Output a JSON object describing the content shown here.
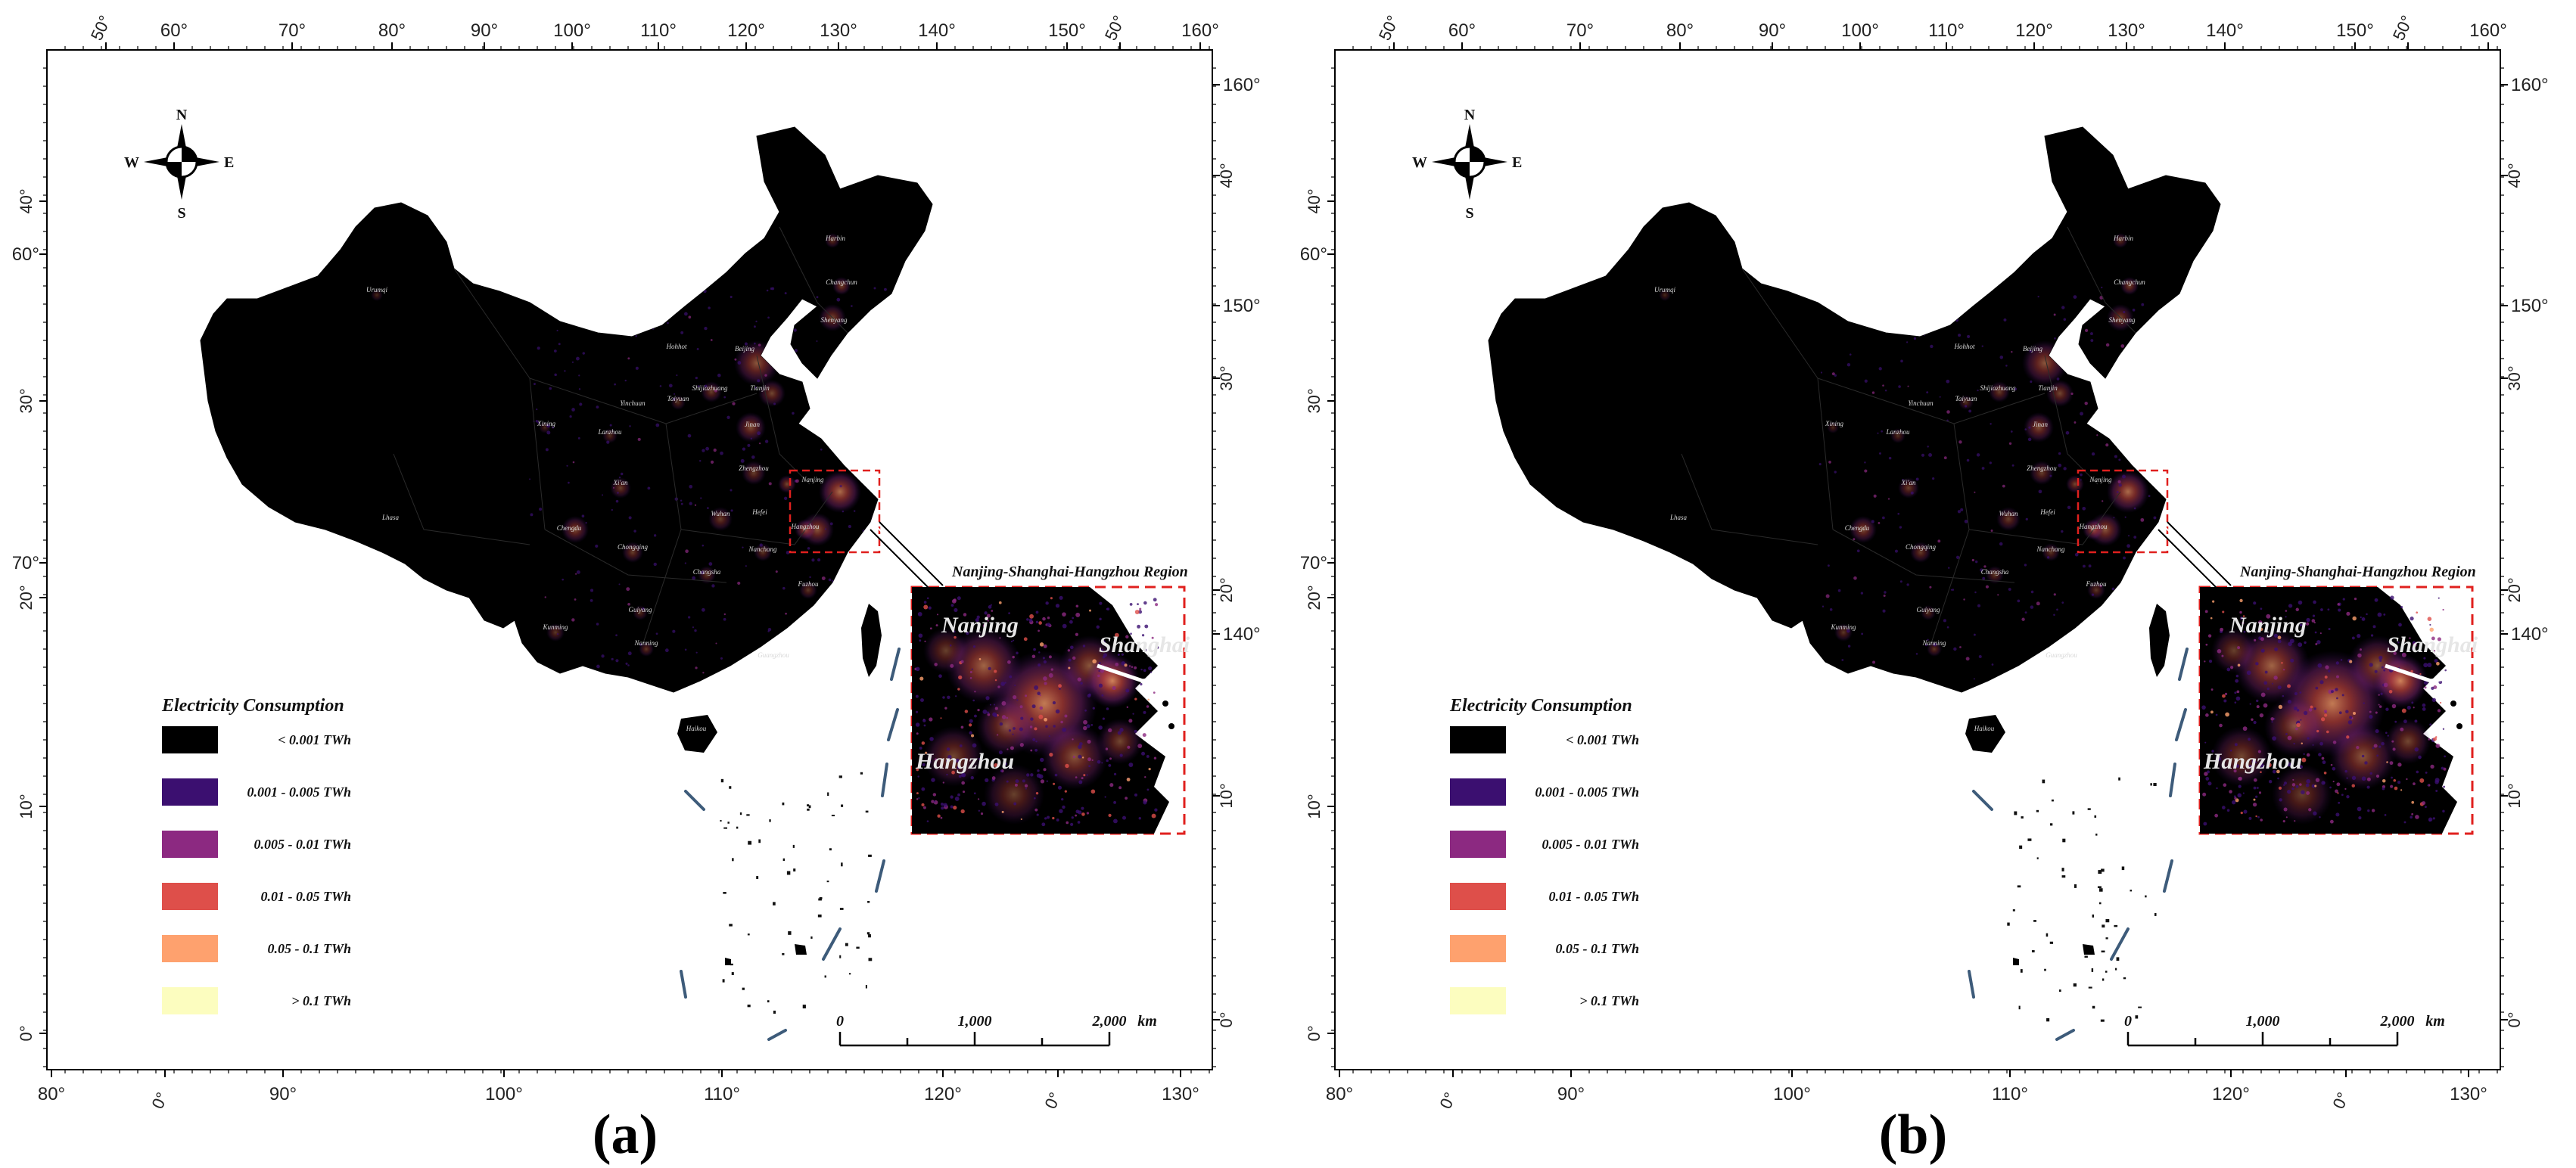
{
  "panels": [
    {
      "letter": "(a)",
      "legend": {
        "title": "Electricity Consumption",
        "items": [
          {
            "label": "< 0.001 TWh",
            "color": "#000000"
          },
          {
            "label": "0.001 - 0.005 TWh",
            "color": "#3b0f70"
          },
          {
            "label": "0.005 - 0.01 TWh",
            "color": "#8c2981"
          },
          {
            "label": "0.01 - 0.05 TWh",
            "color": "#de4f4a"
          },
          {
            "label": "0.05 - 0.1 TWh",
            "color": "#fea16e"
          },
          {
            "label": "> 0.1 TWh",
            "color": "#fcfdbf"
          }
        ]
      },
      "compass": {
        "n": "N",
        "s": "S",
        "e": "E",
        "w": "W"
      },
      "inset": {
        "title": "Nanjing-Shanghai-Hangzhou Region",
        "cities": [
          "Nanjing",
          "Shanghai",
          "Hangzhou"
        ]
      },
      "scalebar": {
        "labels": [
          "0",
          "1,000",
          "2,000"
        ],
        "unit": "km"
      }
    },
    {
      "letter": "(b)",
      "legend": {
        "title": "Electricity Consumption",
        "items": [
          {
            "label": "< 0.001 TWh",
            "color": "#000000"
          },
          {
            "label": "0.001 - 0.005 TWh",
            "color": "#3b0f70"
          },
          {
            "label": "0.005 - 0.01 TWh",
            "color": "#8c2981"
          },
          {
            "label": "0.01 - 0.05 TWh",
            "color": "#de4f4a"
          },
          {
            "label": "0.05 - 0.1 TWh",
            "color": "#fea16e"
          },
          {
            "label": "> 0.1 TWh",
            "color": "#fcfdbf"
          }
        ]
      },
      "compass": {
        "n": "N",
        "s": "S",
        "e": "E",
        "w": "W"
      },
      "inset": {
        "title": "Nanjing-Shanghai-Hangzhou Region",
        "cities": [
          "Nanjing",
          "Shanghai",
          "Hangzhou"
        ]
      },
      "scalebar": {
        "labels": [
          "0",
          "1,000",
          "2,000"
        ],
        "unit": "km"
      }
    }
  ],
  "ticks": {
    "top": [
      "50°",
      "60°",
      "70°",
      "80°",
      "90°",
      "100°",
      "110°",
      "120°",
      "130°",
      "140°",
      "150°",
      "50°",
      "160°"
    ],
    "bottom": [
      "80°",
      "0°",
      "90°",
      "100°",
      "110°",
      "120°",
      "0°",
      "130°"
    ],
    "left": [
      "40°",
      "60°",
      "30°",
      "70°",
      "20°",
      "10°",
      "0°"
    ],
    "right": [
      "160°",
      "40°",
      "150°",
      "30°",
      "20°",
      "140°",
      "10°",
      "0°"
    ]
  },
  "cities": [
    "Harbin",
    "Changchun",
    "Urumqi",
    "Shenyang",
    "Hohhot",
    "Beijing",
    "Shijiazhuang",
    "Tianjin",
    "Yinchuan",
    "Taiyuan",
    "Xining",
    "Lanzhou",
    "Jinan",
    "Zhengzhou",
    "Nanjing",
    "Xi'an",
    "Hefei",
    "Lhasa",
    "Wuhan",
    "Hangzhou",
    "Chengdu",
    "Chongqing",
    "Nanchang",
    "Changsha",
    "Fuzhou",
    "Guiyang",
    "Kunming",
    "Nanning",
    "Guangzhou",
    "Haikou"
  ]
}
